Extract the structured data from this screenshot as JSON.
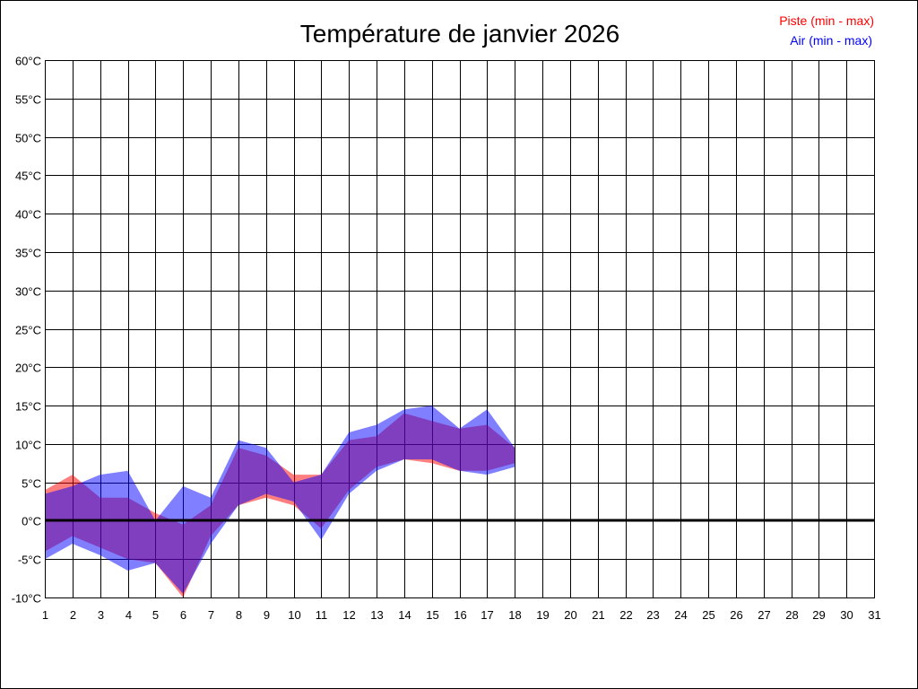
{
  "chart_data": {
    "type": "area",
    "title": "Température de janvier 2026",
    "xlabel": "",
    "ylabel": "",
    "x": [
      1,
      2,
      3,
      4,
      5,
      6,
      7,
      8,
      9,
      10,
      11,
      12,
      13,
      14,
      15,
      16,
      17,
      18
    ],
    "xlim": [
      1,
      31
    ],
    "xticks": [
      "1",
      "2",
      "3",
      "4",
      "5",
      "6",
      "7",
      "8",
      "9",
      "10",
      "11",
      "12",
      "13",
      "14",
      "15",
      "16",
      "17",
      "18",
      "19",
      "20",
      "21",
      "22",
      "23",
      "24",
      "25",
      "26",
      "27",
      "28",
      "29",
      "30",
      "31"
    ],
    "ylim": [
      -10,
      60
    ],
    "yticks": [
      "-10°C",
      "-5°C",
      "0°C",
      "5°C",
      "10°C",
      "15°C",
      "20°C",
      "25°C",
      "30°C",
      "35°C",
      "40°C",
      "45°C",
      "50°C",
      "55°C",
      "60°C"
    ],
    "grid": true,
    "zero_line": true,
    "legend_position": "top-right",
    "series": [
      {
        "name": "Piste (min - max)",
        "color": "#ff0000",
        "min": [
          -4,
          -2,
          -3.5,
          -5,
          -5.5,
          -10,
          -2,
          2,
          3,
          2,
          -1,
          4,
          7,
          8,
          7.5,
          6.5,
          6.5,
          7.5
        ],
        "max": [
          4,
          6,
          3,
          3,
          1,
          -0.5,
          2,
          9.5,
          8.5,
          6,
          6,
          10.5,
          11,
          14,
          13,
          12,
          12.5,
          9.5
        ]
      },
      {
        "name": "Air (min - max)",
        "color": "#0000ff",
        "min": [
          -5,
          -3,
          -4.5,
          -6.5,
          -5.5,
          -9.5,
          -3,
          2,
          3.5,
          2.5,
          -2.5,
          3.5,
          6.5,
          8,
          8,
          6.5,
          6,
          7
        ],
        "max": [
          3.5,
          4.5,
          6,
          6.5,
          0,
          4.5,
          3,
          10.5,
          9.5,
          5,
          6,
          11.5,
          12.5,
          14.5,
          15,
          12,
          14.5,
          9.5
        ]
      }
    ]
  }
}
